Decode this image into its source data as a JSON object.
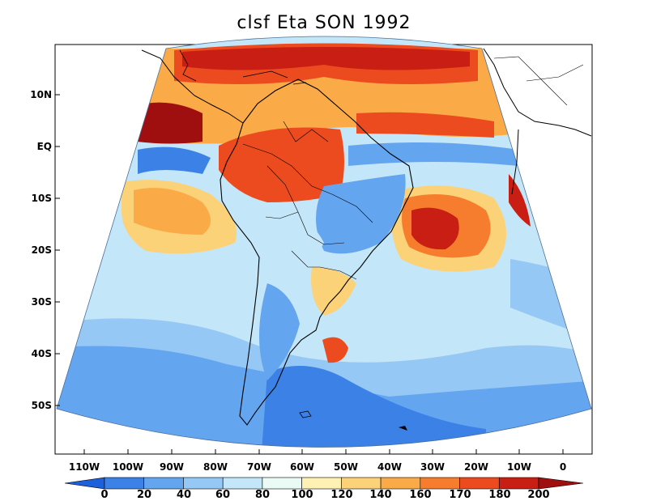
{
  "title": "clsf Eta SON 1992",
  "lat_labels": [
    "10N",
    "EQ",
    "10S",
    "20S",
    "30S",
    "40S",
    "50S"
  ],
  "lon_labels": [
    "110W",
    "100W",
    "90W",
    "80W",
    "70W",
    "60W",
    "50W",
    "40W",
    "30W",
    "20W",
    "10W",
    "0"
  ],
  "colorbar": {
    "labels": [
      "0",
      "20",
      "40",
      "60",
      "80",
      "100",
      "120",
      "140",
      "160",
      "170",
      "180",
      "200"
    ],
    "colors": [
      "#1e5fdc",
      "#3c82e6",
      "#64a5f0",
      "#96c8f5",
      "#c3e6f8",
      "#eafaf5",
      "#fff0b4",
      "#fcd278",
      "#faaa46",
      "#f57d2d",
      "#eb4b1e",
      "#c81e14",
      "#a00f0f"
    ]
  },
  "land_color": "#000000"
}
